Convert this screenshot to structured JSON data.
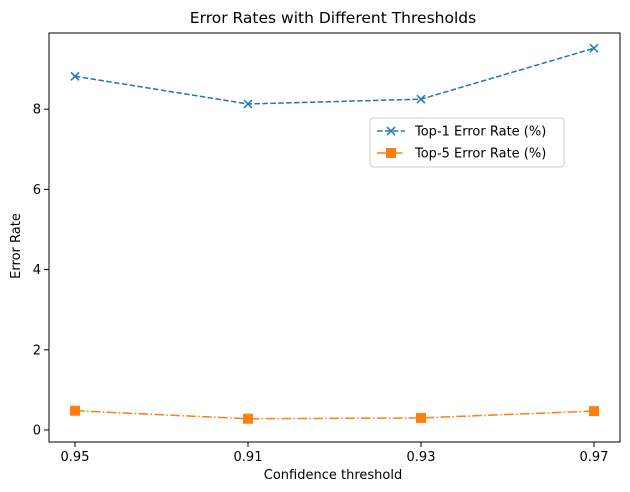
{
  "chart_data": {
    "type": "line",
    "title": "Error Rates with Different Thresholds",
    "xlabel": "Confidence threshold",
    "ylabel": "Error Rate",
    "categories": [
      "0.95",
      "0.91",
      "0.93",
      "0.97"
    ],
    "ylim": [
      -0.3,
      9.9
    ],
    "yticks": [
      0,
      2,
      4,
      6,
      8
    ],
    "grid": false,
    "legend_position": "upper-right",
    "series": [
      {
        "name": "Top-1 Error Rate (%)",
        "values": [
          8.82,
          8.13,
          8.25,
          9.52
        ],
        "color": "#1f77b4",
        "marker": "x",
        "linestyle": "dashed"
      },
      {
        "name": "Top-5 Error Rate (%)",
        "values": [
          0.48,
          0.28,
          0.3,
          0.47
        ],
        "color": "#ff7f0e",
        "marker": "square",
        "linestyle": "dashdot"
      }
    ]
  }
}
